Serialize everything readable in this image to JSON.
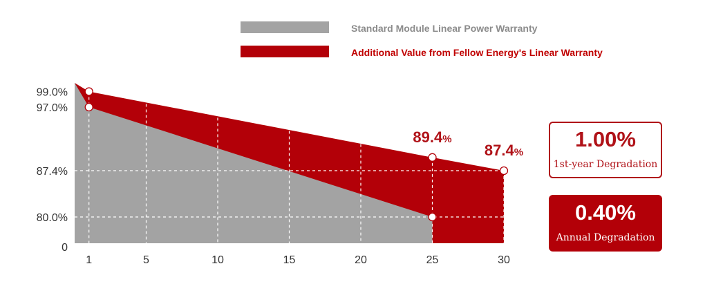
{
  "legend": {
    "standard_label": "Standard Module Linear Power Warranty",
    "additional_label": "Additional Value from Fellow Energy's Linear Warranty"
  },
  "colors": {
    "standard_fill": "#a3a3a3",
    "additional_fill": "#b30008",
    "accent_text": "#b01218",
    "legend_standard_text": "#8c8c8c"
  },
  "chart_data": {
    "type": "area",
    "x_ticks": [
      "1",
      "5",
      "10",
      "15",
      "20",
      "25",
      "30"
    ],
    "y_ticks": [
      "0",
      "80.0%",
      "87.4%",
      "97.0%",
      "99.0%"
    ],
    "series": [
      {
        "name": "Standard Module Linear Power Warranty",
        "points": [
          [
            0,
            100.0
          ],
          [
            1,
            97.0
          ],
          [
            25,
            80.0
          ]
        ]
      },
      {
        "name": "Additional Value from Fellow Energy's Linear Warranty",
        "points": [
          [
            0,
            100.0
          ],
          [
            1,
            99.0
          ],
          [
            25,
            89.4
          ],
          [
            30,
            87.4
          ]
        ]
      }
    ],
    "markers": [
      [
        1,
        99.0
      ],
      [
        1,
        97.0
      ],
      [
        25,
        89.4
      ],
      [
        25,
        80.0
      ],
      [
        30,
        87.4
      ]
    ],
    "annotations": [
      {
        "x": 25,
        "y": 89.4,
        "number": "89.4",
        "unit": "%"
      },
      {
        "x": 30,
        "y": 87.4,
        "number": "87.4",
        "unit": "%"
      }
    ],
    "grid": true
  },
  "badges": {
    "first_year_value": "1.00%",
    "first_year_caption": "1st-year Degradation",
    "annual_value": "0.40%",
    "annual_caption": "Annual Degradation"
  }
}
